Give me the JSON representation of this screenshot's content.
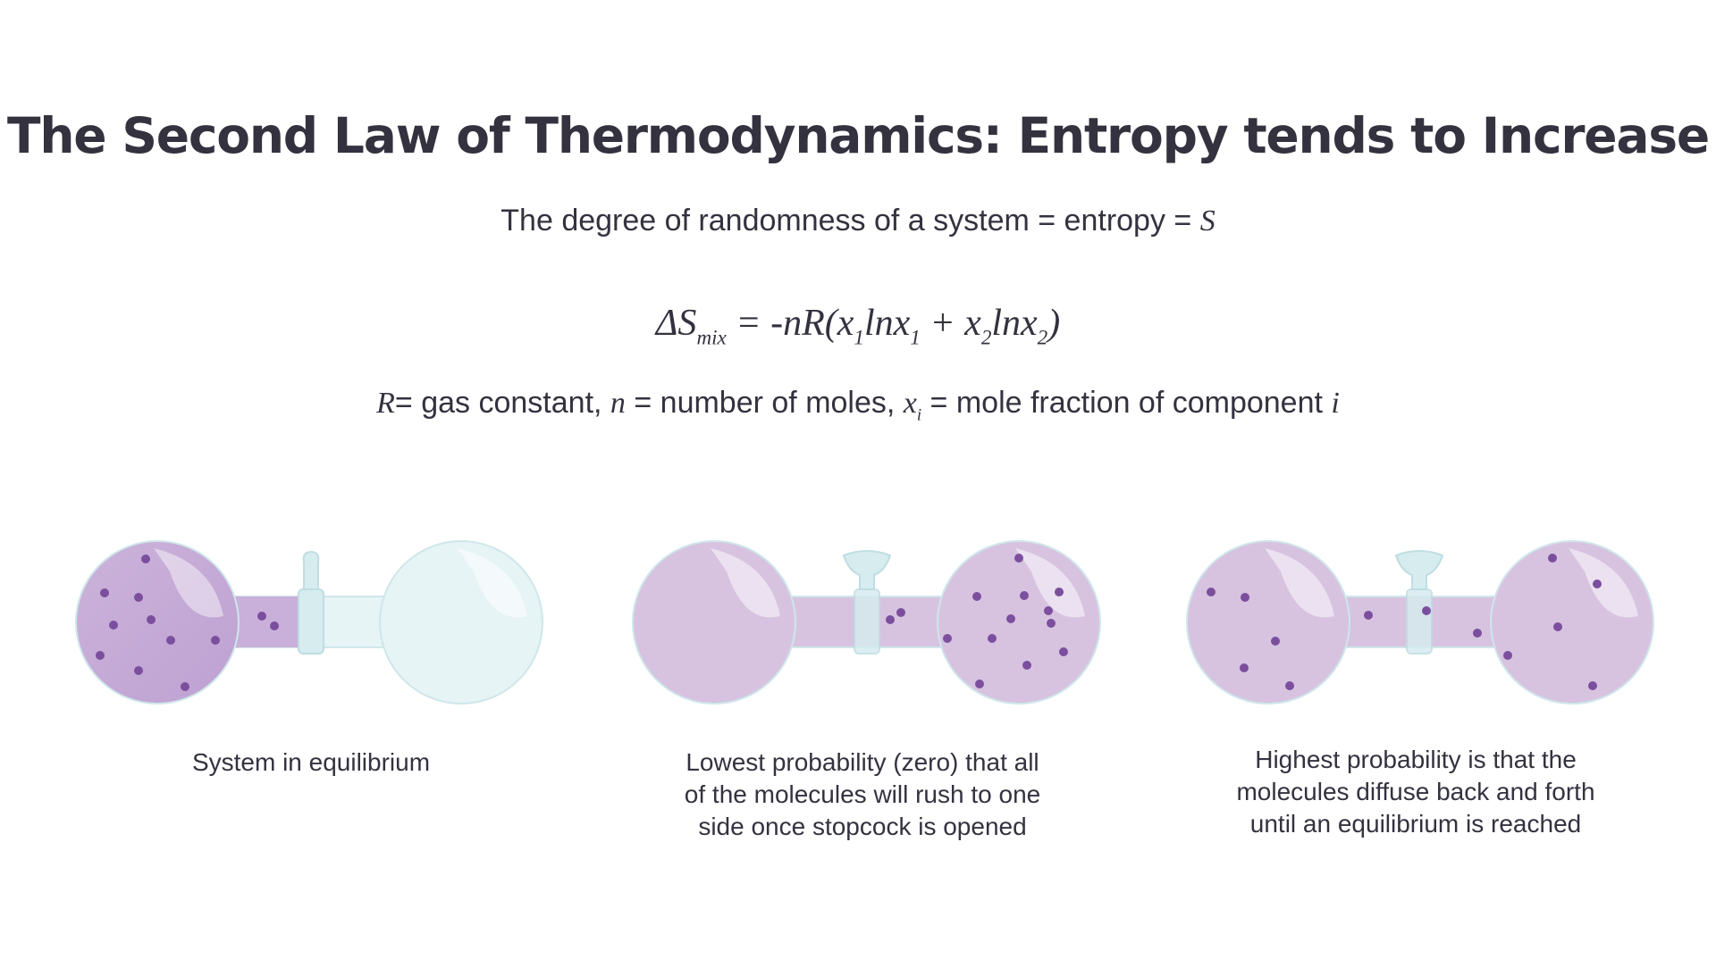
{
  "title": "The Second Law of Thermodynamics: Entropy tends to Increase",
  "subtitle": {
    "text": "The degree of randomness of a system = entropy = ",
    "symbol": "S"
  },
  "formula": {
    "delta": "ΔS",
    "delta_sub": "mix",
    "rhs_start": " = -nR(x",
    "sub1": "1",
    "ln1": "lnx",
    "sub2": "1",
    "plus": " + x",
    "sub3": "2",
    "ln2": "lnx",
    "sub4": "2",
    "close": ")"
  },
  "legend": {
    "r_symbol": "R",
    "r_text": "= gas constant, ",
    "n_symbol": "n",
    "n_text": " = number of moles, ",
    "x_symbol": "x",
    "x_sub": "i",
    "x_text": " = mole fraction of component ",
    "i_symbol": "i"
  },
  "panels": [
    {
      "name": "equilibrium",
      "caption": [
        "System in equilibrium"
      ]
    },
    {
      "name": "lowest-probability",
      "caption": [
        "Lowest probability (zero) that all",
        "of the molecules will rush to one",
        "side once stopcock is opened"
      ]
    },
    {
      "name": "highest-probability",
      "caption": [
        "Highest probability is that the",
        "molecules diffuse back and forth",
        "until an equilibrium is reached"
      ]
    }
  ],
  "colors": {
    "text": "#34323f",
    "gas_fill": "#d7c3e0",
    "gas_dark": "#c2a8d4",
    "molecule": "#7b4f9e",
    "empty_flask": "#e6f4f5",
    "glass_edge": "#cfe6ea",
    "stopcock": "#d6ecef"
  }
}
